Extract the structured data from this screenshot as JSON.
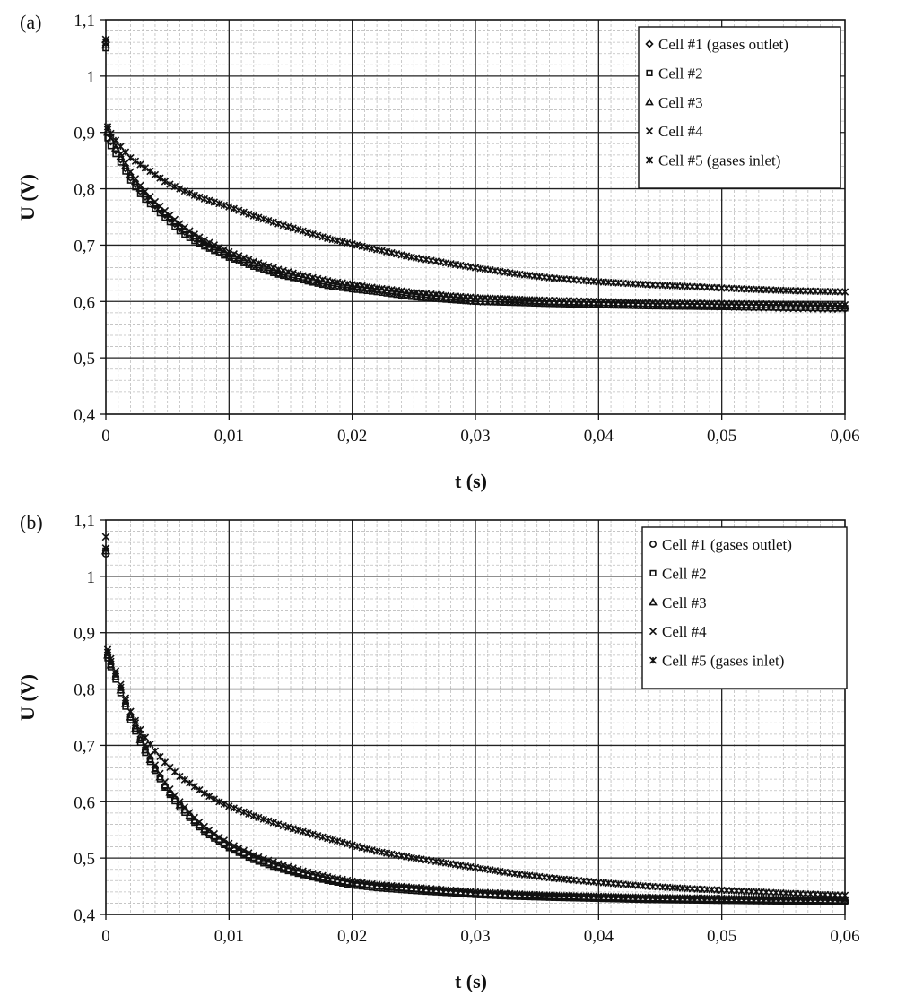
{
  "chart_data": [
    {
      "type": "scatter",
      "panel_label": "(a)",
      "xlabel": "t (s)",
      "ylabel": "U (V)",
      "xlim": [
        0,
        0.06
      ],
      "ylim": [
        0.4,
        1.1
      ],
      "x_ticks": [
        "0",
        "0,01",
        "0,02",
        "0,03",
        "0,04",
        "0,05",
        "0,06"
      ],
      "y_ticks": [
        "0,4",
        "0,5",
        "0,6",
        "0,7",
        "0,8",
        "0,9",
        "1",
        "1,1"
      ],
      "grid": true,
      "legend_position": "top-right",
      "x": [
        0,
        0.001,
        0.002,
        0.003,
        0.004,
        0.005,
        0.006,
        0.007,
        0.008,
        0.009,
        0.01,
        0.012,
        0.014,
        0.016,
        0.018,
        0.02,
        0.022,
        0.025,
        0.028,
        0.03,
        0.033,
        0.036,
        0.04,
        0.044,
        0.048,
        0.052,
        0.056,
        0.06
      ],
      "series": [
        {
          "name": "Cell #1 (gases outlet)",
          "marker": "diamond",
          "initial": 1.06,
          "values": [
            0.9,
            0.86,
            0.82,
            0.79,
            0.77,
            0.75,
            0.73,
            0.715,
            0.7,
            0.69,
            0.68,
            0.665,
            0.65,
            0.64,
            0.63,
            0.625,
            0.62,
            0.61,
            0.605,
            0.6,
            0.6,
            0.598,
            0.595,
            0.593,
            0.592,
            0.59,
            0.588,
            0.587
          ]
        },
        {
          "name": "Cell #2",
          "marker": "square",
          "initial": 1.05,
          "values": [
            0.89,
            0.855,
            0.815,
            0.785,
            0.765,
            0.745,
            0.725,
            0.71,
            0.698,
            0.688,
            0.678,
            0.662,
            0.648,
            0.638,
            0.628,
            0.622,
            0.617,
            0.608,
            0.603,
            0.6,
            0.598,
            0.596,
            0.594,
            0.592,
            0.591,
            0.59,
            0.589,
            0.588
          ]
        },
        {
          "name": "Cell #3",
          "marker": "triangle",
          "initial": 1.055,
          "values": [
            0.9,
            0.865,
            0.825,
            0.795,
            0.772,
            0.752,
            0.733,
            0.718,
            0.705,
            0.694,
            0.684,
            0.668,
            0.654,
            0.643,
            0.634,
            0.628,
            0.622,
            0.614,
            0.608,
            0.605,
            0.603,
            0.6,
            0.598,
            0.596,
            0.595,
            0.594,
            0.593,
            0.592
          ]
        },
        {
          "name": "Cell #4",
          "marker": "x",
          "initial": 1.06,
          "values": [
            0.905,
            0.87,
            0.83,
            0.8,
            0.777,
            0.757,
            0.738,
            0.722,
            0.709,
            0.698,
            0.688,
            0.671,
            0.657,
            0.646,
            0.637,
            0.63,
            0.624,
            0.616,
            0.61,
            0.607,
            0.604,
            0.602,
            0.6,
            0.598,
            0.597,
            0.596,
            0.595,
            0.594
          ]
        },
        {
          "name": "Cell #5 (gases inlet)",
          "marker": "star",
          "initial": 1.065,
          "values": [
            0.91,
            0.88,
            0.855,
            0.84,
            0.825,
            0.81,
            0.8,
            0.79,
            0.782,
            0.775,
            0.768,
            0.752,
            0.738,
            0.725,
            0.712,
            0.702,
            0.692,
            0.678,
            0.667,
            0.66,
            0.65,
            0.642,
            0.635,
            0.63,
            0.626,
            0.622,
            0.619,
            0.617
          ]
        }
      ]
    },
    {
      "type": "scatter",
      "panel_label": "(b)",
      "xlabel": "t (s)",
      "ylabel": "U (V)",
      "xlim": [
        0,
        0.06
      ],
      "ylim": [
        0.4,
        1.1
      ],
      "x_ticks": [
        "0",
        "0,01",
        "0,02",
        "0,03",
        "0,04",
        "0,05",
        "0,06"
      ],
      "y_ticks": [
        "0,4",
        "0,5",
        "0,6",
        "0,7",
        "0,8",
        "0,9",
        "1",
        "1,1"
      ],
      "grid": true,
      "legend_position": "top-right",
      "x": [
        0,
        0.0005,
        0.001,
        0.0015,
        0.002,
        0.003,
        0.004,
        0.005,
        0.006,
        0.007,
        0.008,
        0.009,
        0.01,
        0.012,
        0.014,
        0.016,
        0.018,
        0.02,
        0.022,
        0.025,
        0.028,
        0.03,
        0.033,
        0.036,
        0.04,
        0.044,
        0.048,
        0.052,
        0.056,
        0.06
      ],
      "series": [
        {
          "name": "Cell #1 (gases outlet)",
          "marker": "circle",
          "initial": 1.04,
          "values": [
            0.86,
            0.84,
            0.81,
            0.78,
            0.75,
            0.7,
            0.66,
            0.62,
            0.595,
            0.57,
            0.55,
            0.535,
            0.52,
            0.5,
            0.485,
            0.472,
            0.462,
            0.455,
            0.45,
            0.445,
            0.44,
            0.437,
            0.434,
            0.432,
            0.43,
            0.428,
            0.427,
            0.426,
            0.425,
            0.424
          ]
        },
        {
          "name": "Cell #2",
          "marker": "square",
          "initial": 1.045,
          "values": [
            0.855,
            0.835,
            0.805,
            0.775,
            0.745,
            0.695,
            0.655,
            0.618,
            0.59,
            0.567,
            0.547,
            0.532,
            0.518,
            0.497,
            0.482,
            0.47,
            0.46,
            0.452,
            0.447,
            0.442,
            0.438,
            0.435,
            0.432,
            0.43,
            0.428,
            0.426,
            0.425,
            0.424,
            0.423,
            0.422
          ]
        },
        {
          "name": "Cell #3",
          "marker": "triangle",
          "initial": 1.045,
          "values": [
            0.86,
            0.838,
            0.81,
            0.78,
            0.75,
            0.7,
            0.658,
            0.622,
            0.594,
            0.571,
            0.551,
            0.536,
            0.522,
            0.501,
            0.486,
            0.474,
            0.464,
            0.456,
            0.451,
            0.446,
            0.441,
            0.438,
            0.435,
            0.433,
            0.431,
            0.429,
            0.428,
            0.427,
            0.426,
            0.425
          ]
        },
        {
          "name": "Cell #4",
          "marker": "x",
          "initial": 1.07,
          "values": [
            0.87,
            0.85,
            0.82,
            0.79,
            0.76,
            0.71,
            0.665,
            0.628,
            0.6,
            0.576,
            0.556,
            0.54,
            0.526,
            0.505,
            0.49,
            0.477,
            0.467,
            0.459,
            0.453,
            0.448,
            0.443,
            0.44,
            0.437,
            0.434,
            0.432,
            0.43,
            0.429,
            0.428,
            0.427,
            0.426
          ]
        },
        {
          "name": "Cell #5 (gases inlet)",
          "marker": "star",
          "initial": 1.05,
          "values": [
            0.865,
            0.845,
            0.815,
            0.785,
            0.76,
            0.72,
            0.69,
            0.665,
            0.645,
            0.63,
            0.615,
            0.602,
            0.592,
            0.575,
            0.56,
            0.547,
            0.535,
            0.523,
            0.512,
            0.5,
            0.49,
            0.483,
            0.473,
            0.465,
            0.457,
            0.45,
            0.445,
            0.441,
            0.437,
            0.434
          ]
        }
      ]
    }
  ]
}
